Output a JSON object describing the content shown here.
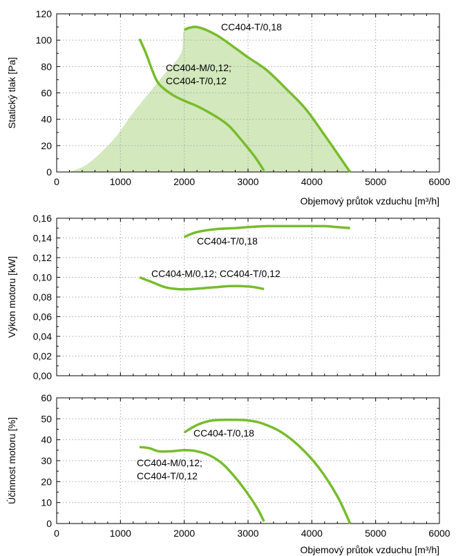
{
  "colors": {
    "curve": "#77bc2c",
    "envelope": "#d3e8bd",
    "grid": "#a6a6a6",
    "frame": "#000000"
  },
  "chart_data": [
    {
      "type": "line",
      "xlabel": "Objemový průtok vzduchu [m³/h]",
      "ylabel": "Statický tlak [Pa]",
      "xlim": [
        0,
        6000
      ],
      "ylim": [
        0,
        120
      ],
      "xticks": [
        0,
        1000,
        2000,
        3000,
        4000,
        5000,
        6000
      ],
      "yticks": [
        0,
        20,
        40,
        60,
        80,
        100,
        120
      ],
      "xtick_labels": [
        "0",
        "1000",
        "2000",
        "3000",
        "4000",
        "5000",
        "6000"
      ],
      "ytick_labels": [
        "0",
        "20",
        "40",
        "60",
        "80",
        "100",
        "120"
      ],
      "grid": true,
      "area": {
        "x": [
          200,
          450,
          700,
          950,
          1200,
          1450,
          1700,
          1950,
          2000,
          2200,
          2500,
          2800,
          3000,
          3300,
          3600,
          3900,
          4200,
          4400,
          4600
        ],
        "y": [
          0,
          5,
          15,
          28,
          45,
          60,
          75,
          90,
          108,
          110,
          104,
          94,
          87,
          77,
          63,
          48,
          28,
          14,
          0
        ]
      },
      "series": [
        {
          "label_lines": [
            "CC404-T/0,18"
          ],
          "x": [
            2000,
            2200,
            2500,
            2800,
            3000,
            3300,
            3600,
            3900,
            4200,
            4400,
            4600
          ],
          "y": [
            108,
            110,
            104,
            94,
            87,
            77,
            63,
            48,
            28,
            14,
            0
          ]
        },
        {
          "label_lines": [
            "CC404-M/0,12;",
            "CC404-T/0,12"
          ],
          "x": [
            1300,
            1400,
            1500,
            1600,
            1800,
            2000,
            2200,
            2500,
            2700,
            2900,
            3100,
            3250
          ],
          "y": [
            101,
            90,
            77,
            67,
            59,
            54,
            50,
            42,
            35,
            24,
            12,
            1
          ]
        }
      ]
    },
    {
      "type": "line",
      "xlabel": "Objemový průtok vzduchu [m³/h]",
      "ylabel": "Výkon motoru [kW]",
      "xlim": [
        0,
        6000
      ],
      "ylim": [
        0,
        0.16
      ],
      "xticks": [
        0,
        1000,
        2000,
        3000,
        4000,
        5000,
        6000
      ],
      "yticks": [
        0,
        0.02,
        0.04,
        0.06,
        0.08,
        0.1,
        0.12,
        0.14,
        0.16
      ],
      "ytick_labels": [
        "0,00",
        "0,02",
        "0,04",
        "0,06",
        "0,08",
        "0,10",
        "0,12",
        "0,14",
        "0,16"
      ],
      "grid": true,
      "series": [
        {
          "label_lines": [
            "CC404-T/0,18"
          ],
          "x": [
            2000,
            2200,
            2500,
            2800,
            3000,
            3300,
            3600,
            3900,
            4200,
            4400,
            4600
          ],
          "y": [
            0.141,
            0.146,
            0.149,
            0.15,
            0.151,
            0.152,
            0.152,
            0.152,
            0.152,
            0.151,
            0.15
          ]
        },
        {
          "label_lines": [
            "CC404-M/0,12; CC404-T/0,12"
          ],
          "x": [
            1300,
            1500,
            1700,
            1900,
            2100,
            2300,
            2500,
            2700,
            2900,
            3100,
            3250
          ],
          "y": [
            0.1,
            0.095,
            0.09,
            0.088,
            0.088,
            0.089,
            0.09,
            0.091,
            0.091,
            0.09,
            0.088
          ]
        }
      ]
    },
    {
      "type": "line",
      "xlabel": "Objemový průtok vzduchu [m³/h]",
      "ylabel": "Účinnost motoru [%]",
      "xlim": [
        0,
        6000
      ],
      "ylim": [
        0,
        60
      ],
      "xticks": [
        0,
        1000,
        2000,
        3000,
        4000,
        5000,
        6000
      ],
      "yticks": [
        0,
        10,
        20,
        30,
        40,
        50,
        60
      ],
      "xtick_labels": [
        "0",
        "1000",
        "2000",
        "3000",
        "4000",
        "5000",
        "6000"
      ],
      "ytick_labels": [
        "0",
        "10",
        "20",
        "30",
        "40",
        "50",
        "60"
      ],
      "grid": true,
      "series": [
        {
          "label_lines": [
            "CC404-T/0,18"
          ],
          "x": [
            2000,
            2200,
            2400,
            2600,
            2800,
            3000,
            3200,
            3500,
            3800,
            4100,
            4400,
            4600
          ],
          "y": [
            43.5,
            47,
            49,
            49.5,
            49.5,
            49.2,
            48,
            44,
            37,
            27,
            13,
            0
          ]
        },
        {
          "label_lines": [
            "CC404-M/0,12;",
            "CC404-T/0,12"
          ],
          "x": [
            1300,
            1450,
            1600,
            1800,
            2000,
            2200,
            2400,
            2600,
            2800,
            3000,
            3150,
            3250
          ],
          "y": [
            36.5,
            36,
            34.5,
            34.5,
            35,
            34.5,
            32.5,
            28.5,
            22,
            14,
            7,
            1
          ]
        }
      ]
    }
  ]
}
